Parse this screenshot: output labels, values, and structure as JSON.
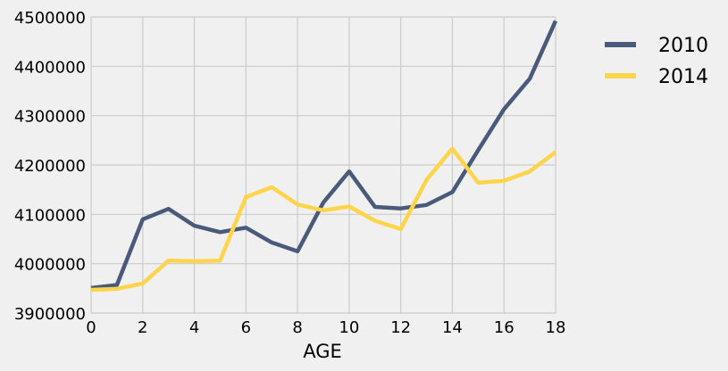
{
  "chart_data": {
    "type": "line",
    "title": "",
    "xlabel": "AGE",
    "ylabel": "",
    "xlim": [
      0,
      18
    ],
    "ylim": [
      3900000,
      4500000
    ],
    "xticks": [
      0,
      2,
      4,
      6,
      8,
      10,
      12,
      14,
      16,
      18
    ],
    "yticks": [
      3900000,
      4000000,
      4100000,
      4200000,
      4300000,
      4400000,
      4500000
    ],
    "xtick_labels": [
      "0",
      "2",
      "4",
      "6",
      "8",
      "10",
      "12",
      "14",
      "16",
      "18"
    ],
    "ytick_labels": [
      "3900000",
      "4000000",
      "4100000",
      "4200000",
      "4300000",
      "4400000",
      "4500000"
    ],
    "grid": true,
    "legend_position": "outside-right",
    "x": [
      0,
      1,
      2,
      3,
      4,
      5,
      6,
      7,
      8,
      9,
      10,
      11,
      12,
      13,
      14,
      15,
      16,
      17,
      18
    ],
    "series": [
      {
        "name": "2010",
        "color": "#4a5a7a",
        "values": [
          3951000,
          3957000,
          4090000,
          4111000,
          4077000,
          4064000,
          4073000,
          4043000,
          4025000,
          4124000,
          4187000,
          4115000,
          4112000,
          4119000,
          4145000,
          4230000,
          4313000,
          4375000,
          4492000
        ]
      },
      {
        "name": "2014",
        "color": "#fdd44a",
        "values": [
          3947000,
          3949000,
          3960000,
          4006000,
          4005000,
          4006000,
          4135000,
          4155000,
          4120000,
          4108000,
          4116000,
          4087000,
          4070000,
          4170000,
          4233000,
          4164000,
          4168000,
          4187000,
          4226000
        ]
      }
    ]
  }
}
